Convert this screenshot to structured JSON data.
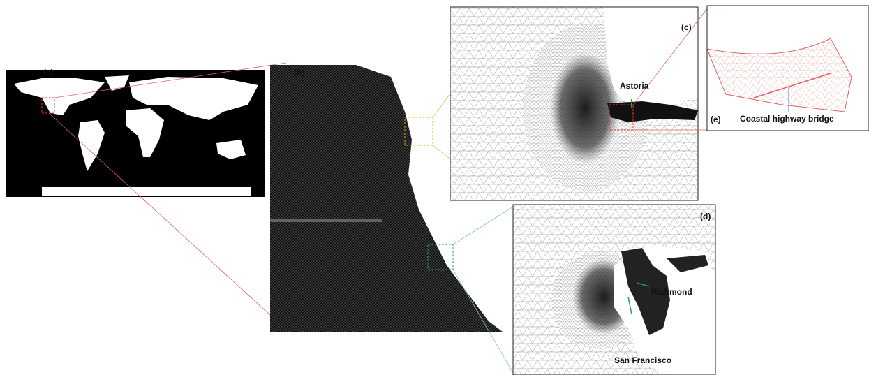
{
  "panels": [
    "(a)",
    "(b)",
    "(c)",
    "(d)",
    "(e)"
  ],
  "labels": [
    "Astoria",
    "Coastal highway bridge",
    "Richmond",
    "San Francisco"
  ]
}
